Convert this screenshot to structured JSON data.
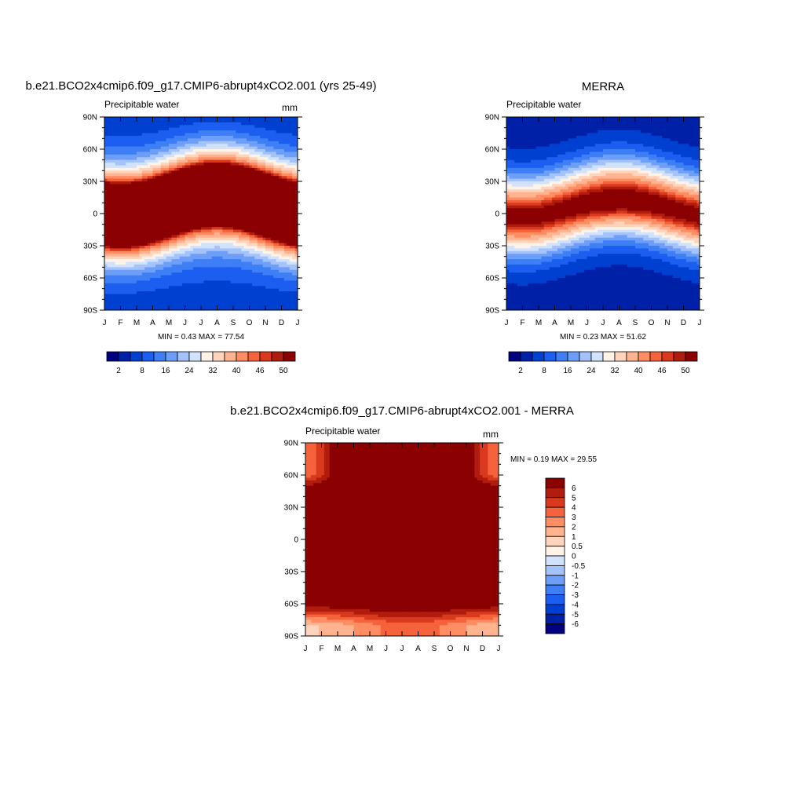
{
  "colors": {
    "sequential": [
      "#000080",
      "#0020a8",
      "#0040d0",
      "#1c5ef0",
      "#3f7ff5",
      "#6e9ff8",
      "#a4c3fb",
      "#d0e2fc",
      "#fff2e6",
      "#ffd4bc",
      "#ffb38f",
      "#ff8d64",
      "#f5623b",
      "#d93a1e",
      "#b01c0d",
      "#8b0000"
    ],
    "diverging": [
      "#000080",
      "#0020a8",
      "#0040d0",
      "#1c5ef0",
      "#3f7ff5",
      "#6e9ff8",
      "#a4c3fb",
      "#d0e2fc",
      "#fff2e6",
      "#ffd4bc",
      "#ffb38f",
      "#ff8d64",
      "#f5623b",
      "#d93a1e",
      "#b01c0d",
      "#8b0000"
    ]
  },
  "chart_data": [
    {
      "type": "heatmap",
      "title": "b.e21.BCO2x4cmip6.f09_g17.CMIP6-abrupt4xCO2.001 (yrs 25-49)",
      "subtitle": "Precipitable water",
      "units": "mm",
      "x_tick_labels": [
        "J",
        "F",
        "M",
        "A",
        "M",
        "J",
        "J",
        "A",
        "S",
        "O",
        "N",
        "D",
        "J"
      ],
      "y_tick_labels": [
        "90N",
        "60N",
        "30N",
        "0",
        "30S",
        "60S",
        "90S"
      ],
      "y_ticks": [
        90,
        60,
        30,
        0,
        -30,
        -60,
        -90
      ],
      "ylim": [
        -90,
        90
      ],
      "stats": "MIN =   0.43 MAX =  77.54",
      "min": 0.43,
      "max": 77.54,
      "colorbar": {
        "orientation": "horizontal",
        "levels": [
          2,
          4,
          8,
          12,
          16,
          20,
          24,
          28,
          32,
          36,
          40,
          44,
          46,
          48,
          50
        ],
        "labels": [
          "2",
          "8",
          "16",
          "24",
          "32",
          "40",
          "46",
          "50"
        ]
      }
    },
    {
      "type": "heatmap",
      "title": "MERRA",
      "subtitle": "Precipitable water",
      "units": "",
      "x_tick_labels": [
        "J",
        "F",
        "M",
        "A",
        "M",
        "J",
        "J",
        "A",
        "S",
        "O",
        "N",
        "D",
        "J"
      ],
      "y_tick_labels": [
        "90N",
        "60N",
        "30N",
        "0",
        "30S",
        "60S",
        "90S"
      ],
      "y_ticks": [
        90,
        60,
        30,
        0,
        -30,
        -60,
        -90
      ],
      "ylim": [
        -90,
        90
      ],
      "stats": "MIN =   0.23 MAX =  51.62",
      "min": 0.23,
      "max": 51.62,
      "colorbar": {
        "orientation": "horizontal",
        "levels": [
          2,
          4,
          8,
          12,
          16,
          20,
          24,
          28,
          32,
          36,
          40,
          44,
          46,
          48,
          50
        ],
        "labels": [
          "2",
          "8",
          "16",
          "24",
          "32",
          "40",
          "46",
          "50"
        ]
      }
    },
    {
      "type": "heatmap",
      "title": "b.e21.BCO2x4cmip6.f09_g17.CMIP6-abrupt4xCO2.001 - MERRA",
      "subtitle": "Precipitable water",
      "units": "mm",
      "x_tick_labels": [
        "J",
        "F",
        "M",
        "A",
        "M",
        "J",
        "J",
        "A",
        "S",
        "O",
        "N",
        "D",
        "J"
      ],
      "y_tick_labels": [
        "90N",
        "60N",
        "30N",
        "0",
        "30S",
        "60S",
        "90S"
      ],
      "y_ticks": [
        90,
        60,
        30,
        0,
        -30,
        -60,
        -90
      ],
      "ylim": [
        -90,
        90
      ],
      "stats": "MIN =   0.19 MAX =  29.55",
      "min": 0.19,
      "max": 29.55,
      "colorbar": {
        "orientation": "vertical",
        "levels": [
          -6,
          -5,
          -4,
          -3,
          -2,
          -1,
          -0.5,
          0,
          0.5,
          1,
          2,
          3,
          4,
          5,
          6
        ],
        "labels": [
          "6",
          "5",
          "4",
          "3",
          "2",
          "1",
          "0.5",
          "0",
          "-0.5",
          "-1",
          "-2",
          "-3",
          "-4",
          "-5",
          "-6"
        ]
      }
    }
  ]
}
